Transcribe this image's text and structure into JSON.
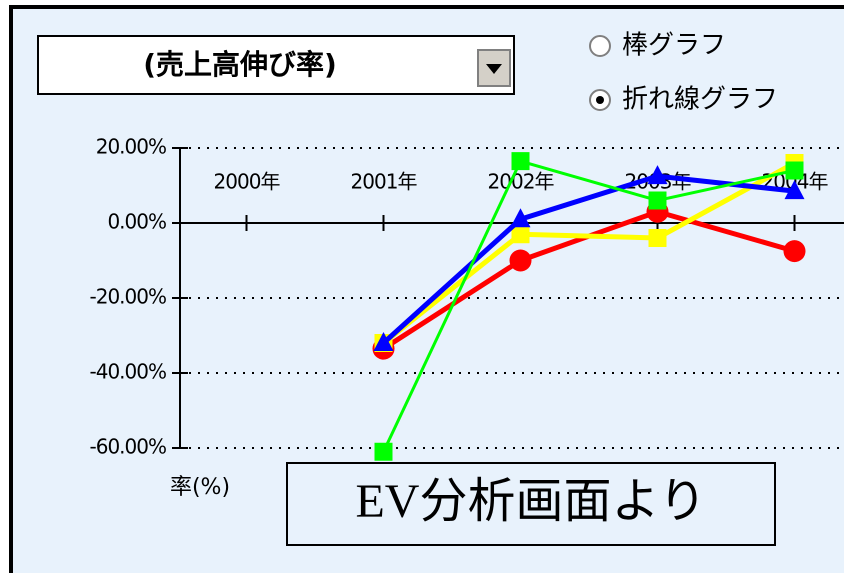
{
  "dropdown": {
    "value": "(売上高伸び率)"
  },
  "radios": [
    {
      "label": "棒グラフ",
      "checked": false
    },
    {
      "label": "折れ線グラフ",
      "checked": true
    }
  ],
  "caption": "EV分析画面より",
  "chart_data": {
    "type": "line",
    "ylabel": "率(%)",
    "categories": [
      "2000年",
      "2001年",
      "2002年",
      "2003年",
      "2004年"
    ],
    "series": [
      {
        "color": "#ff0000",
        "marker": "circle",
        "values": [
          null,
          -33.5,
          -10,
          3,
          -7.5
        ]
      },
      {
        "color": "#ffff00",
        "marker": "square",
        "values": [
          null,
          -32,
          -3,
          -4,
          16
        ]
      },
      {
        "color": "#0000ff",
        "marker": "triangle",
        "values": [
          null,
          -32,
          1,
          12.5,
          8.5
        ]
      },
      {
        "color": "#00ff00",
        "marker": "square",
        "values": [
          null,
          -61,
          16.5,
          6,
          14
        ]
      }
    ],
    "ylim": [
      -60,
      20
    ],
    "yticks": [
      {
        "value": 20,
        "label": "20.00%"
      },
      {
        "value": 0,
        "label": "0.00%"
      },
      {
        "value": -20,
        "label": "-20.00%"
      },
      {
        "value": -40,
        "label": "-40.00%"
      },
      {
        "value": -60,
        "label": "-60.00%"
      }
    ],
    "grid": true
  }
}
